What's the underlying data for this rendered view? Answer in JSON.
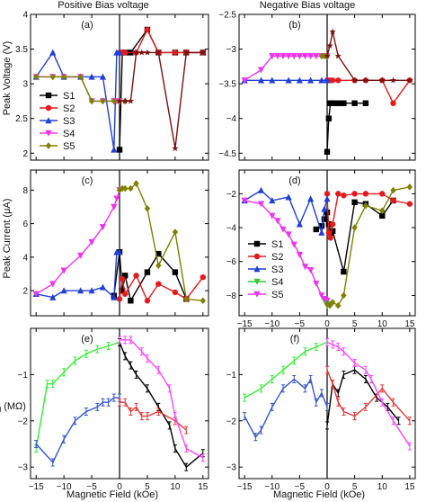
{
  "figure": {
    "col_titles": [
      "Positive Bias voltage",
      "Negative Bias voltage"
    ],
    "ylabels": [
      "Peak Voltage (V)",
      "Peak Current (μA)",
      "r_d (MΩ)"
    ],
    "xlabel": "Magnetic Field (kOe)"
  },
  "chart_data": [
    {
      "id": "a",
      "type": "line",
      "panel_label": "(a)",
      "x_lim": [
        -16,
        16
      ],
      "y_lim": [
        1.9,
        4.0
      ],
      "x_ticks": [
        -15,
        -10,
        -5,
        0,
        5,
        10,
        15
      ],
      "y_ticks": [
        2.0,
        2.5,
        3.0,
        3.5,
        4.0
      ],
      "x_ticklabels_shown": false,
      "legend": "left",
      "series": [
        {
          "name": "S1",
          "color": "#000000",
          "marker": "square",
          "x": [
            0,
            0.5,
            1,
            2,
            5,
            7,
            10,
            12,
            15
          ],
          "y": [
            2.05,
            3.45,
            3.45,
            3.45,
            3.78,
            3.45,
            3.45,
            3.45,
            3.45
          ]
        },
        {
          "name": "S2",
          "color": "#e41a1c",
          "marker": "circle",
          "x": [
            0,
            0.5,
            1,
            3,
            5,
            7,
            10,
            12,
            15
          ],
          "y": [
            3.45,
            3.45,
            3.45,
            3.45,
            3.78,
            3.45,
            3.45,
            3.45,
            3.45
          ]
        },
        {
          "name": "S3",
          "color": "#1f3fd8",
          "marker": "triangle-up",
          "x": [
            -15,
            -12,
            -10,
            -7,
            -5,
            -3,
            -1,
            -0.5,
            0
          ],
          "y": [
            3.1,
            3.45,
            3.1,
            3.1,
            3.1,
            3.1,
            2.05,
            3.45,
            3.45
          ]
        },
        {
          "name": "S4",
          "color": "#ee33ee",
          "marker": "triangle-down",
          "x": [
            -15,
            -12,
            -10,
            -7,
            -5,
            -3,
            -1,
            -0.5,
            0
          ],
          "y": [
            3.1,
            3.1,
            3.1,
            3.1,
            2.75,
            2.75,
            2.75,
            2.75,
            2.75
          ]
        },
        {
          "name": "S5",
          "color": "#808000",
          "marker": "diamond",
          "x": [
            -15,
            -12,
            -10,
            -7,
            -5,
            -3,
            -1,
            0,
            1
          ],
          "y": [
            3.1,
            3.1,
            3.1,
            3.1,
            2.75,
            2.75,
            2.75,
            2.75,
            2.75
          ]
        },
        {
          "name": "",
          "color": "#7a1010",
          "marker": "star",
          "x": [
            0,
            1,
            2,
            3,
            4,
            5,
            7,
            10,
            12,
            15
          ],
          "y": [
            2.75,
            2.75,
            2.75,
            3.45,
            3.45,
            3.45,
            3.45,
            2.07,
            3.45,
            3.45
          ]
        }
      ]
    },
    {
      "id": "b",
      "type": "line",
      "panel_label": "(b)",
      "x_lim": [
        -16,
        16
      ],
      "y_lim": [
        -4.6,
        -2.5
      ],
      "x_ticks": [
        -15,
        -10,
        -5,
        0,
        5,
        10,
        15
      ],
      "y_ticks": [
        -2.5,
        -3.0,
        -3.5,
        -4.0,
        -4.5
      ],
      "x_ticklabels_shown": false,
      "series": [
        {
          "name": "S1",
          "color": "#000000",
          "marker": "square",
          "x": [
            0,
            0.3,
            0.6,
            1,
            2,
            3,
            5,
            7
          ],
          "y": [
            -4.48,
            -4.0,
            -3.78,
            -3.78,
            -3.78,
            -3.78,
            -3.78,
            -3.78
          ]
        },
        {
          "name": "S2",
          "color": "#e41a1c",
          "marker": "circle",
          "x": [
            0,
            0.3,
            0.6,
            1,
            2,
            5,
            7,
            10,
            12,
            15
          ],
          "y": [
            -3.45,
            -3.45,
            -3.45,
            -3.45,
            -3.45,
            -3.45,
            -3.45,
            -3.45,
            -3.78,
            -3.45
          ]
        },
        {
          "name": "S3",
          "color": "#1f3fd8",
          "marker": "triangle-up",
          "x": [
            -15,
            -12,
            -10,
            -7,
            -5,
            -3,
            -1,
            0
          ],
          "y": [
            -3.45,
            -3.45,
            -3.45,
            -3.45,
            -3.45,
            -3.45,
            -3.45,
            -3.45
          ]
        },
        {
          "name": "S4",
          "color": "#ee33ee",
          "marker": "triangle-down",
          "x": [
            -15,
            -12,
            -10,
            -9,
            -8,
            -7,
            -6,
            -5,
            -4,
            -3,
            -2,
            -1,
            0
          ],
          "y": [
            -3.45,
            -3.3,
            -3.1,
            -3.1,
            -3.1,
            -3.1,
            -3.1,
            -3.1,
            -3.1,
            -3.1,
            -3.1,
            -3.1,
            -3.1
          ]
        },
        {
          "name": "S5",
          "color": "#808000",
          "marker": "diamond",
          "x": [
            -1,
            -0.5,
            0
          ],
          "y": [
            -3.1,
            -3.1,
            -3.1
          ]
        },
        {
          "name": "",
          "color": "#7a1010",
          "marker": "star",
          "x": [
            0,
            0.5,
            1,
            2,
            5,
            7,
            10,
            12,
            15
          ],
          "y": [
            -3.1,
            -2.95,
            -2.75,
            -3.1,
            -3.45,
            -3.45,
            -3.45,
            -3.45,
            -3.45
          ]
        }
      ]
    },
    {
      "id": "c",
      "type": "line",
      "panel_label": "(c)",
      "x_lim": [
        -16,
        16
      ],
      "y_lim": [
        0.5,
        9.2
      ],
      "x_ticks": [
        -15,
        -10,
        -5,
        0,
        5,
        10,
        15
      ],
      "y_ticks": [
        2,
        4,
        6,
        8
      ],
      "x_ticklabels_shown": false,
      "series": [
        {
          "name": "S1",
          "color": "#000000",
          "marker": "square",
          "x": [
            -1,
            0,
            0.5,
            1,
            2,
            5,
            7,
            10,
            12
          ],
          "y": [
            1.7,
            4.3,
            2.0,
            2.9,
            1.4,
            3.1,
            4.2,
            3.1,
            1.5
          ]
        },
        {
          "name": "S2",
          "color": "#e41a1c",
          "marker": "circle",
          "x": [
            0,
            0.5,
            1,
            3,
            5,
            7,
            10,
            12,
            15
          ],
          "y": [
            1.5,
            2.7,
            1.8,
            2.9,
            1.4,
            2.4,
            1.9,
            1.5,
            2.8
          ]
        },
        {
          "name": "S3",
          "color": "#1f3fd8",
          "marker": "triangle-up",
          "x": [
            -15,
            -12,
            -10,
            -7,
            -5,
            -3,
            -1,
            -0.5,
            0
          ],
          "y": [
            1.8,
            1.6,
            2.0,
            2.0,
            2.0,
            2.2,
            1.6,
            4.3,
            4.3
          ]
        },
        {
          "name": "S4",
          "color": "#ee33ee",
          "marker": "triangle-down",
          "x": [
            -15,
            -12,
            -10,
            -7,
            -5,
            -3,
            -1,
            -0.5,
            0
          ],
          "y": [
            1.8,
            2.4,
            3.2,
            4.1,
            4.9,
            5.8,
            7.0,
            7.5,
            8.0
          ]
        },
        {
          "name": "S5",
          "color": "#808000",
          "marker": "diamond",
          "x": [
            0,
            0.5,
            1,
            2,
            3,
            5,
            7,
            10,
            12,
            15
          ],
          "y": [
            8.0,
            8.1,
            8.1,
            8.1,
            8.4,
            6.9,
            3.5,
            5.5,
            1.5,
            1.4
          ]
        }
      ]
    },
    {
      "id": "d",
      "type": "line",
      "panel_label": "(d)",
      "x_lim": [
        -16,
        16
      ],
      "y_lim": [
        -9.2,
        -0.6
      ],
      "x_ticks": [
        -15,
        -10,
        -5,
        0,
        5,
        10,
        15
      ],
      "y_ticks": [
        -2,
        -4,
        -6,
        -8
      ],
      "x_ticklabels_shown": true,
      "legend": "left",
      "series": [
        {
          "name": "S1",
          "color": "#000000",
          "marker": "square",
          "x": [
            -2,
            -1,
            -0.5,
            0,
            0.3,
            0.6,
            1,
            3,
            5,
            7,
            10,
            12
          ],
          "y": [
            -4.1,
            -3.9,
            -3.5,
            -3.1,
            -3.8,
            -4.3,
            -4.2,
            -6.6,
            -2.5,
            -2.6,
            -3.3,
            -2.4
          ]
        },
        {
          "name": "S2",
          "color": "#e41a1c",
          "marker": "circle",
          "x": [
            0,
            0.3,
            0.6,
            1,
            2,
            3,
            5,
            7,
            10,
            12,
            15
          ],
          "y": [
            -2.0,
            -4.3,
            -4.6,
            -3.8,
            -2.0,
            -2.1,
            -2.0,
            -2.0,
            -2.0,
            -2.4,
            -2.6
          ]
        },
        {
          "name": "S3",
          "color": "#1f3fd8",
          "marker": "triangle-up",
          "x": [
            -15,
            -12,
            -10,
            -7,
            -5,
            -3,
            -1,
            -0.5,
            0
          ],
          "y": [
            -2.4,
            -1.8,
            -2.4,
            -2.2,
            -3.8,
            -2.3,
            -4.3,
            -2.9,
            -2.3
          ]
        },
        {
          "name": "S4",
          "color": "#33cc33",
          "marker": "triangle-down",
          "x": [
            -0.5,
            0,
            0.3
          ],
          "y": [
            -8.3,
            -8.6,
            -8.5
          ]
        },
        {
          "name": "S5",
          "color": "#ee33ee",
          "marker": "triangle-down",
          "x": [
            -15,
            -12,
            -10,
            -9,
            -8,
            -7,
            -6,
            -5,
            -4,
            -3,
            -2,
            -1,
            -0.5,
            0
          ],
          "y": [
            -2.4,
            -2.6,
            -3.3,
            -3.6,
            -4.1,
            -4.4,
            -5.0,
            -5.6,
            -6.3,
            -6.5,
            -7.3,
            -8.0,
            -8.2,
            -8.3
          ]
        },
        {
          "name": "",
          "color": "#808000",
          "marker": "diamond",
          "x": [
            0,
            0.5,
            1,
            2,
            3,
            5,
            7,
            10,
            12,
            15
          ],
          "y": [
            -8.5,
            -8.6,
            -8.4,
            -8.6,
            -8.0,
            -4.0,
            -2.7,
            -3.0,
            -1.8,
            -1.6
          ]
        }
      ]
    },
    {
      "id": "e",
      "type": "line",
      "panel_label": "(e)",
      "errorbars": true,
      "x_lim": [
        -16,
        16
      ],
      "y_lim": [
        -3.25,
        0
      ],
      "x_ticks": [
        -15,
        -10,
        -5,
        0,
        5,
        10,
        15
      ],
      "y_ticks": [
        -1,
        -2,
        -3
      ],
      "x_ticklabels_shown": true,
      "series": [
        {
          "name": "",
          "color": "#33ee33",
          "x": [
            -15,
            -13,
            -12,
            -10,
            -8,
            -6,
            -4,
            -2,
            0
          ],
          "y": [
            -2.6,
            -1.2,
            -1.2,
            -0.95,
            -0.7,
            -0.55,
            -0.45,
            -0.38,
            -0.3
          ]
        },
        {
          "name": "",
          "color": "#3355cc",
          "x": [
            -15,
            -12,
            -10,
            -8,
            -6,
            -4,
            -3,
            -2,
            -1,
            0
          ],
          "y": [
            -2.5,
            -2.9,
            -2.4,
            -2.0,
            -1.8,
            -1.7,
            -1.6,
            -1.6,
            -1.5,
            -1.5
          ]
        },
        {
          "name": "",
          "color": "#000000",
          "x": [
            0,
            1,
            2,
            3,
            5,
            7,
            9,
            10,
            12,
            15
          ],
          "y": [
            -0.3,
            -0.6,
            -0.8,
            -1.0,
            -1.3,
            -1.7,
            -2.1,
            -2.6,
            -3.0,
            -2.7
          ]
        },
        {
          "name": "",
          "color": "#ee3333",
          "x": [
            0,
            1,
            2,
            3,
            4,
            5,
            7,
            10,
            12
          ],
          "y": [
            -1.6,
            -1.6,
            -1.8,
            -1.7,
            -1.9,
            -1.9,
            -1.8,
            -2.0,
            -2.2
          ]
        },
        {
          "name": "",
          "color": "#ff44ff",
          "x": [
            0,
            1,
            2,
            4,
            5,
            7,
            9,
            10,
            12,
            15
          ],
          "y": [
            -0.25,
            -0.25,
            -0.25,
            -0.5,
            -0.65,
            -0.9,
            -1.3,
            -1.9,
            -2.6,
            -2.8
          ]
        }
      ]
    },
    {
      "id": "f",
      "type": "line",
      "panel_label": "(f)",
      "errorbars": true,
      "x_lim": [
        -16,
        16
      ],
      "y_lim": [
        -3.25,
        0
      ],
      "x_ticks": [
        -15,
        -10,
        -5,
        0,
        5,
        10,
        15
      ],
      "y_ticks": [
        -1,
        -2,
        -3
      ],
      "x_ticklabels_shown": true,
      "series": [
        {
          "name": "",
          "color": "#33ee33",
          "x": [
            -15,
            -12,
            -10,
            -8,
            -6,
            -4,
            -2,
            0
          ],
          "y": [
            -1.5,
            -1.3,
            -1.1,
            -0.9,
            -0.7,
            -0.5,
            -0.4,
            -0.3
          ]
        },
        {
          "name": "",
          "color": "#3355cc",
          "x": [
            -15,
            -13,
            -12,
            -10,
            -8,
            -6,
            -4,
            -3,
            -2,
            -1,
            0
          ],
          "y": [
            -1.9,
            -2.35,
            -2.2,
            -1.7,
            -1.3,
            -1.1,
            -1.3,
            -1.1,
            -1.6,
            -1.4,
            -1.7
          ]
        },
        {
          "name": "",
          "color": "#000000",
          "x": [
            0,
            1,
            2,
            3,
            5,
            7,
            9,
            11,
            13
          ],
          "y": [
            -2.1,
            -1.2,
            -1.4,
            -1.0,
            -0.9,
            -1.1,
            -1.5,
            -1.7,
            -2.0
          ]
        },
        {
          "name": "",
          "color": "#ee3333",
          "x": [
            0,
            1,
            2,
            3,
            5,
            7,
            10,
            12,
            15
          ],
          "y": [
            -0.9,
            -1.2,
            -1.6,
            -1.8,
            -1.9,
            -1.7,
            -1.3,
            -1.6,
            -2.0
          ]
        },
        {
          "name": "",
          "color": "#ff44ff",
          "x": [
            0,
            1,
            2,
            3,
            5,
            7,
            8,
            10,
            12,
            15
          ],
          "y": [
            -0.3,
            -0.35,
            -0.4,
            -0.5,
            -0.75,
            -0.9,
            -1.1,
            -1.6,
            -2.0,
            -2.55
          ]
        }
      ]
    }
  ]
}
